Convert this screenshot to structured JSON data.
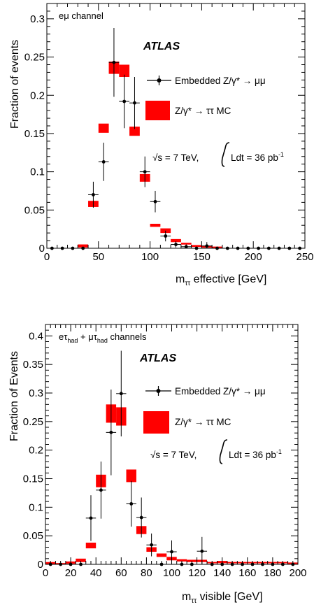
{
  "chart_data": [
    {
      "type": "histogram",
      "channel_label": "eμ channel",
      "experiment": "ATLAS",
      "ylabel": "Fraction of events",
      "xlabel_prefix": "m",
      "xlabel_sub": "ττ",
      "xlabel_suffix": " effective [GeV]",
      "xlim": [
        0,
        250
      ],
      "ylim": [
        0,
        0.32
      ],
      "x_ticks": [
        0,
        50,
        100,
        150,
        200,
        250
      ],
      "y_ticks": [
        0,
        0.05,
        0.1,
        0.15,
        0.2,
        0.25,
        0.3
      ],
      "y_tick_labels": [
        "0",
        "0.05",
        "0.1",
        "0.15",
        "0.2",
        "0.25",
        "0.3"
      ],
      "energy_label": "√s = 7 TeV,",
      "lumi_label": "Ldt = 36 pb",
      "lumi_sup": "-1",
      "legend": [
        {
          "name": "Embedded Z/γ* → μμ",
          "style": "points",
          "color": "#000000"
        },
        {
          "name": "Z/γ* → ττ MC",
          "style": "box",
          "color": "#ff0000"
        }
      ],
      "embedded_points": {
        "x": [
          5,
          15,
          25,
          35,
          45,
          55,
          65,
          75,
          85,
          95,
          105,
          115,
          125,
          135,
          145,
          155,
          165,
          175,
          185,
          195,
          205,
          215,
          225,
          235,
          245
        ],
        "y": [
          0,
          0,
          0,
          0,
          0.07,
          0.113,
          0.243,
          0.192,
          0.19,
          0.1,
          0.061,
          0.016,
          0.005,
          0.002,
          0,
          0.003,
          0,
          0,
          0,
          0,
          0,
          0,
          0,
          0,
          0
        ],
        "err": [
          0,
          0,
          0,
          0,
          0.017,
          0.025,
          0.045,
          0.035,
          0.034,
          0.02,
          0.014,
          0.007,
          0.004,
          0.003,
          0,
          0.005,
          0,
          0,
          0,
          0,
          0,
          0,
          0,
          0,
          0
        ]
      },
      "mc_bins": {
        "x": [
          35,
          45,
          55,
          65,
          75,
          85,
          95,
          105,
          115,
          125,
          135,
          145,
          155,
          165
        ],
        "y": [
          0.003,
          0.058,
          0.157,
          0.236,
          0.232,
          0.153,
          0.092,
          0.03,
          0.023,
          0.01,
          0.006,
          0.003,
          0.002,
          0.001
        ],
        "err": [
          0.002,
          0.004,
          0.006,
          0.008,
          0.008,
          0.006,
          0.005,
          0.002,
          0.003,
          0.002,
          0.001,
          0.001,
          0.001,
          0.001
        ]
      }
    },
    {
      "type": "histogram",
      "channel_label": "eτhad + μτhad channels",
      "experiment": "ATLAS",
      "ylabel": "Fraction of Events",
      "xlabel_prefix": "m",
      "xlabel_sub": "ττ",
      "xlabel_suffix": " visible [GeV]",
      "xlim": [
        0,
        200
      ],
      "ylim": [
        0,
        0.42
      ],
      "x_ticks": [
        0,
        20,
        40,
        60,
        80,
        100,
        120,
        140,
        160,
        180,
        200
      ],
      "y_ticks": [
        0,
        0.05,
        0.1,
        0.15,
        0.2,
        0.25,
        0.3,
        0.35,
        0.4
      ],
      "y_tick_labels": [
        "0",
        "0.05",
        "0.1",
        "0.15",
        "0.2",
        "0.25",
        "0.3",
        "0.35",
        "0.4"
      ],
      "energy_label": "√s = 7 TeV,",
      "lumi_label": "Ldt = 36 pb",
      "lumi_sup": "-1",
      "legend": [
        {
          "name": "Embedded Z/γ* → μμ",
          "style": "points",
          "color": "#000000"
        },
        {
          "name": "Z/γ* → ττ MC",
          "style": "box",
          "color": "#ff0000"
        }
      ],
      "embedded_points": {
        "x": [
          4,
          12,
          20,
          28,
          36,
          44,
          52,
          60,
          68,
          76,
          84,
          92,
          100,
          108,
          116,
          124,
          132,
          140,
          148,
          156,
          164,
          172,
          180,
          188,
          196
        ],
        "y": [
          0,
          0,
          0,
          0,
          0.081,
          0.13,
          0.231,
          0.299,
          0.106,
          0.082,
          0.034,
          0,
          0.022,
          0,
          0,
          0.023,
          0,
          0,
          0,
          0,
          0,
          0,
          0,
          0,
          0
        ],
        "err": [
          0,
          0,
          0,
          0,
          0.04,
          0.05,
          0.075,
          0.075,
          0.04,
          0.035,
          0.02,
          0,
          0.02,
          0,
          0,
          0.025,
          0,
          0,
          0,
          0,
          0,
          0,
          0,
          0,
          0
        ]
      },
      "mc_bins": {
        "x": [
          4,
          12,
          20,
          28,
          36,
          44,
          52,
          60,
          68,
          76,
          84,
          92,
          100,
          108,
          116,
          124,
          132,
          140,
          148,
          156,
          164,
          172,
          180,
          188,
          196
        ],
        "y": [
          0.002,
          0.001,
          0.003,
          0.007,
          0.033,
          0.146,
          0.264,
          0.259,
          0.155,
          0.06,
          0.026,
          0.016,
          0.01,
          0.007,
          0.006,
          0.006,
          0.003,
          0.004,
          0.003,
          0.003,
          0.003,
          0.003,
          0.003,
          0.003,
          0.002
        ],
        "err": [
          0.002,
          0.001,
          0.002,
          0.003,
          0.005,
          0.011,
          0.016,
          0.016,
          0.011,
          0.007,
          0.004,
          0.003,
          0.003,
          0.002,
          0.002,
          0.002,
          0.001,
          0.002,
          0.001,
          0.001,
          0.001,
          0.001,
          0.001,
          0.001,
          0.001
        ]
      }
    }
  ]
}
